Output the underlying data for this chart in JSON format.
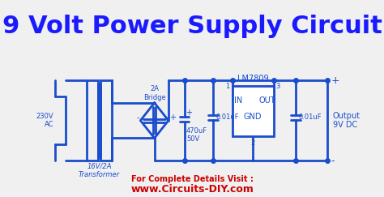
{
  "title": "9 Volt Power Supply Circuit",
  "title_color": "#1a1aff",
  "title_fontsize": 22,
  "bg_color": "#f0f0f0",
  "circuit_color": "#1a4dcc",
  "circuit_lw": 2.0,
  "text_color": "#1a4dcc",
  "footer_normal": "For Complete Details Visit :",
  "footer_url": "www.Circuits-DIY.com",
  "footer_color": "#cc0000",
  "label_230V": "230V\nAC",
  "label_transformer": "16V/2A\nTransformer",
  "label_bridge_top": "2A\nBridge",
  "label_470uF": "470uF\n50V",
  "label_001uF_1": "0.01uF",
  "label_001uF_2": "0.01uF",
  "label_lm7809": "LM7809",
  "label_in": "IN",
  "label_out": "OUT",
  "label_gnd": "GND",
  "label_1": "1",
  "label_2": "2",
  "label_3": "3",
  "label_output_plus": "+",
  "label_output_minus": "-",
  "label_output": "Output\n9V DC"
}
